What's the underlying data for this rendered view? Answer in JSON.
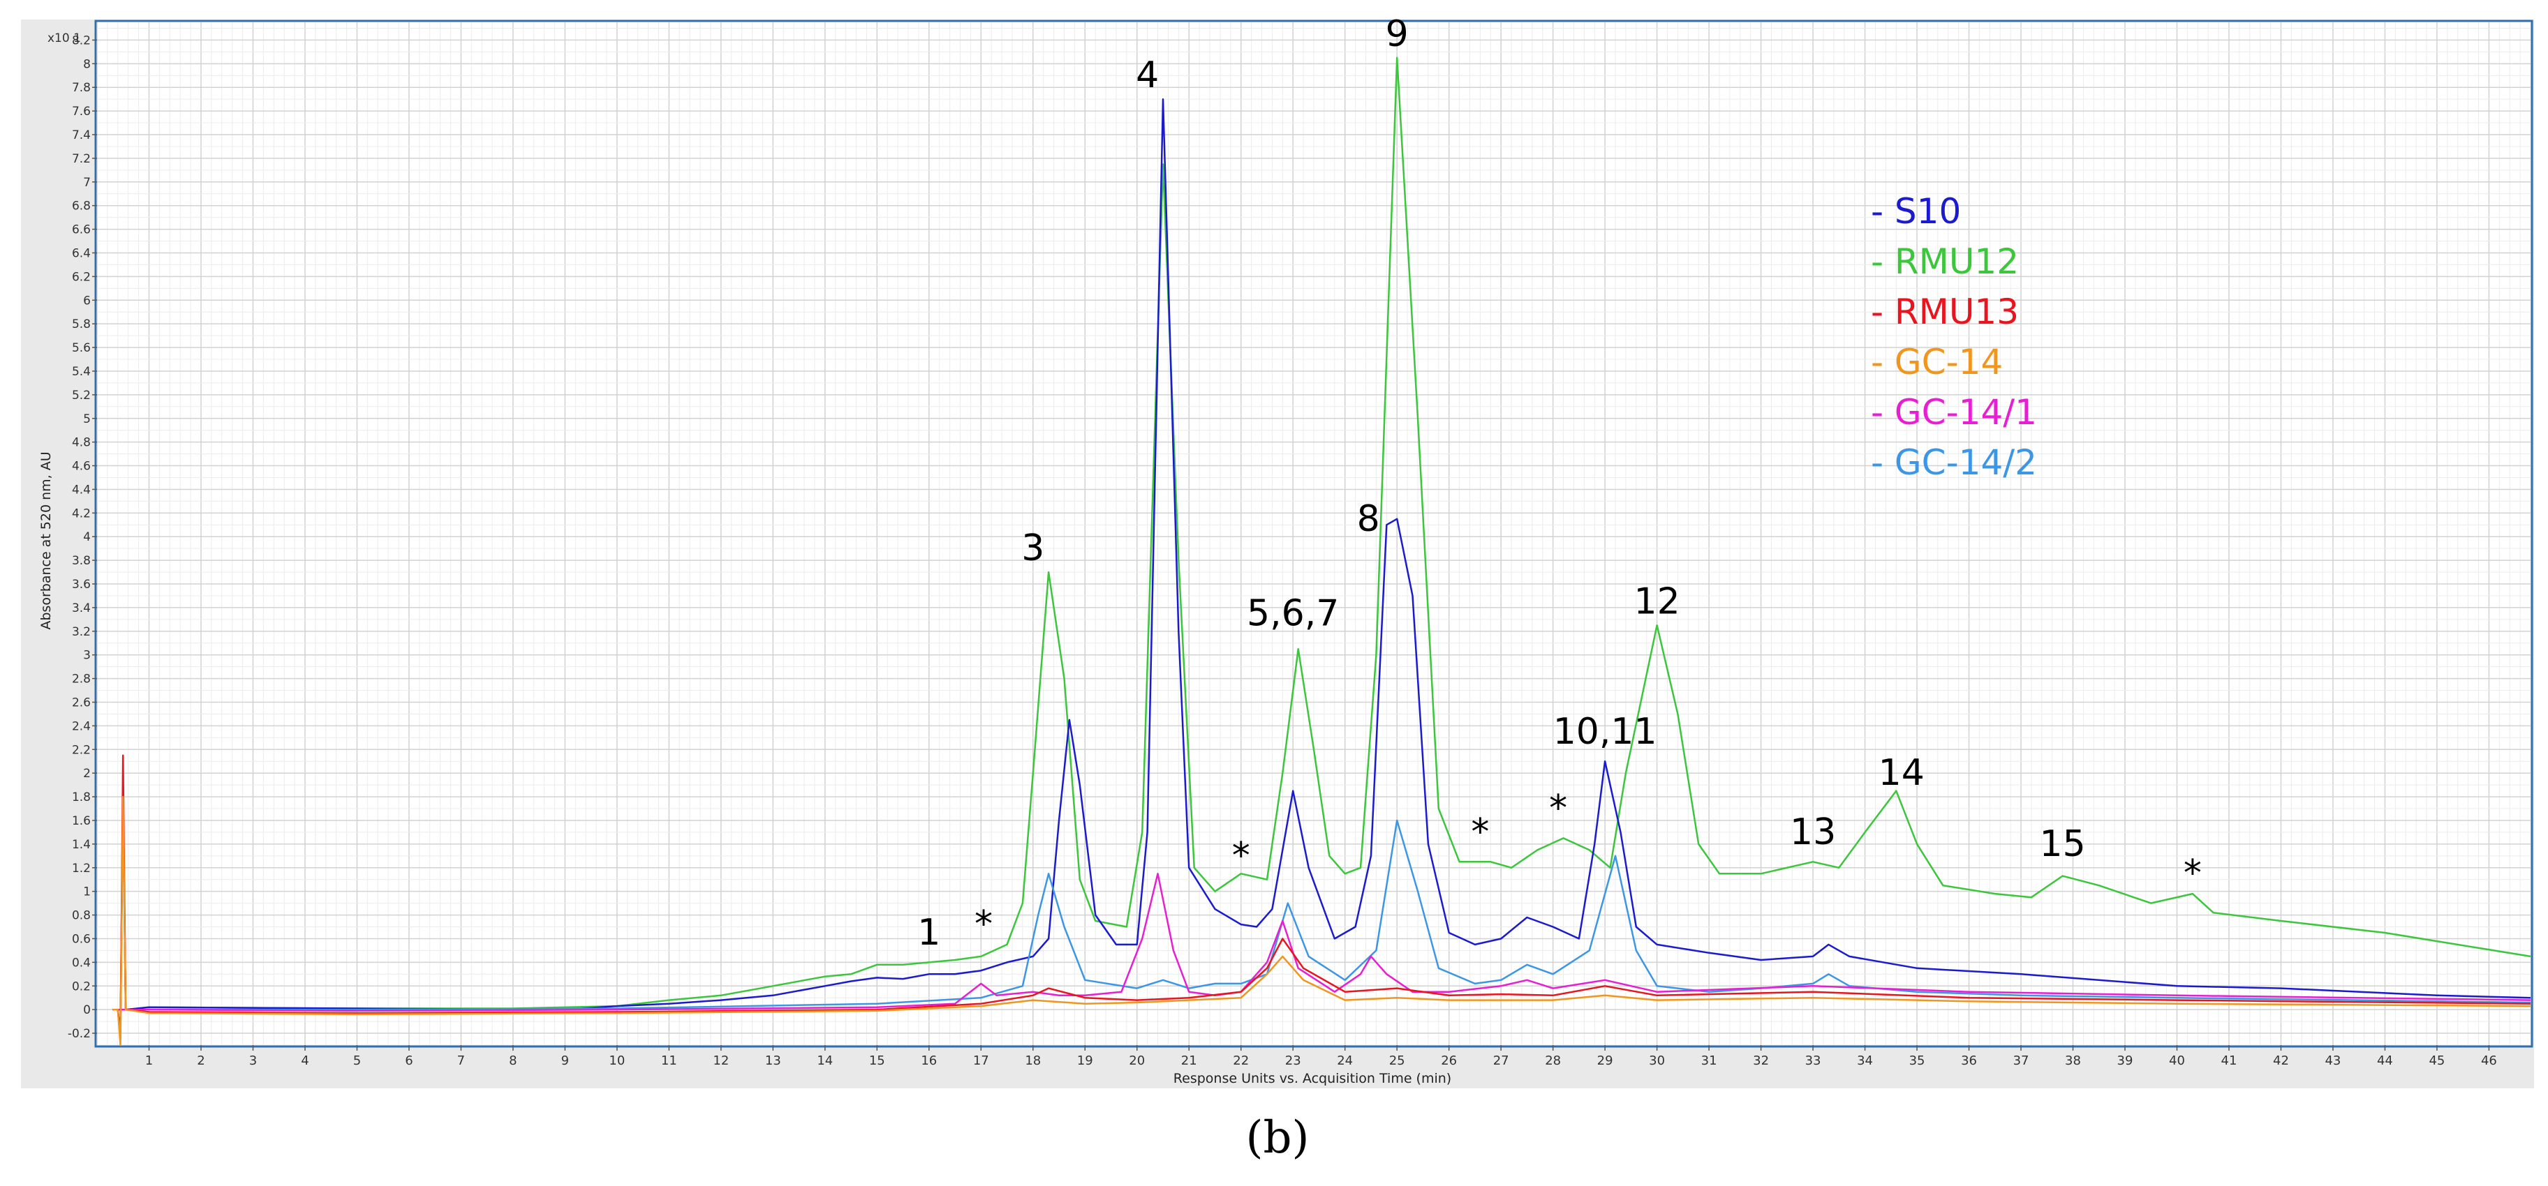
{
  "chart_data": {
    "type": "line",
    "ylabel": "Absorbance at 520 nm, AU",
    "xlabel": "Response Units vs. Acquisition Time (min)",
    "y_multiplier_label": "x10 1",
    "xlim": [
      0,
      46.8
    ],
    "ylim": [
      -0.3,
      8.35
    ],
    "x_ticks": [
      "1",
      "2",
      "3",
      "4",
      "5",
      "6",
      "7",
      "8",
      "9",
      "10",
      "11",
      "12",
      "13",
      "14",
      "15",
      "16",
      "17",
      "18",
      "19",
      "20",
      "21",
      "22",
      "23",
      "24",
      "25",
      "26",
      "27",
      "28",
      "29",
      "30",
      "31",
      "32",
      "33",
      "34",
      "35",
      "36",
      "37",
      "38",
      "39",
      "40",
      "41",
      "42",
      "43",
      "44",
      "45",
      "46"
    ],
    "y_ticks": [
      "-0.2",
      "0",
      "0.2",
      "0.4",
      "0.6",
      "0.8",
      "1",
      "1.2",
      "1.4",
      "1.6",
      "1.8",
      "2",
      "2.2",
      "2.4",
      "2.6",
      "2.8",
      "3",
      "3.2",
      "3.4",
      "3.6",
      "3.8",
      "4",
      "4.2",
      "4.4",
      "4.6",
      "4.8",
      "5",
      "5.2",
      "5.4",
      "5.6",
      "5.8",
      "6",
      "6.2",
      "6.4",
      "6.6",
      "6.8",
      "7",
      "7.2",
      "7.4",
      "7.6",
      "7.8",
      "8",
      "8.2"
    ],
    "grid": true,
    "legend_position": "top-right",
    "legend_prefix": "-",
    "series": [
      {
        "name": "S10",
        "color": "#1a1ad0",
        "points": [
          [
            0.3,
            0
          ],
          [
            0.4,
            0
          ],
          [
            0.45,
            -0.2
          ],
          [
            0.5,
            1.8
          ],
          [
            0.55,
            0
          ],
          [
            1,
            0.02
          ],
          [
            5,
            0.01
          ],
          [
            9,
            0
          ],
          [
            10,
            0.03
          ],
          [
            11,
            0.05
          ],
          [
            12,
            0.08
          ],
          [
            13,
            0.12
          ],
          [
            14,
            0.2
          ],
          [
            14.5,
            0.24
          ],
          [
            15,
            0.27
          ],
          [
            15.5,
            0.26
          ],
          [
            16,
            0.3
          ],
          [
            16.5,
            0.3
          ],
          [
            17,
            0.33
          ],
          [
            17.5,
            0.4
          ],
          [
            18,
            0.45
          ],
          [
            18.3,
            0.6
          ],
          [
            18.5,
            1.6
          ],
          [
            18.7,
            2.45
          ],
          [
            18.9,
            1.9
          ],
          [
            19.2,
            0.8
          ],
          [
            19.6,
            0.55
          ],
          [
            20,
            0.55
          ],
          [
            20.2,
            1.5
          ],
          [
            20.5,
            7.7
          ],
          [
            20.8,
            3.2
          ],
          [
            21,
            1.2
          ],
          [
            21.5,
            0.85
          ],
          [
            22,
            0.72
          ],
          [
            22.3,
            0.7
          ],
          [
            22.6,
            0.85
          ],
          [
            23,
            1.85
          ],
          [
            23.3,
            1.2
          ],
          [
            23.8,
            0.6
          ],
          [
            24.2,
            0.7
          ],
          [
            24.5,
            1.3
          ],
          [
            24.8,
            4.1
          ],
          [
            25,
            4.15
          ],
          [
            25.3,
            3.5
          ],
          [
            25.6,
            1.4
          ],
          [
            26,
            0.65
          ],
          [
            26.5,
            0.55
          ],
          [
            27,
            0.6
          ],
          [
            27.5,
            0.78
          ],
          [
            28,
            0.7
          ],
          [
            28.5,
            0.6
          ],
          [
            28.8,
            1.4
          ],
          [
            29,
            2.1
          ],
          [
            29.3,
            1.5
          ],
          [
            29.6,
            0.7
          ],
          [
            30,
            0.55
          ],
          [
            31,
            0.48
          ],
          [
            32,
            0.42
          ],
          [
            33,
            0.45
          ],
          [
            33.3,
            0.55
          ],
          [
            33.7,
            0.45
          ],
          [
            35,
            0.35
          ],
          [
            37,
            0.3
          ],
          [
            40,
            0.2
          ],
          [
            42,
            0.18
          ],
          [
            45,
            0.12
          ],
          [
            46.8,
            0.1
          ]
        ]
      },
      {
        "name": "RMU12",
        "color": "#3cc63c",
        "points": [
          [
            0.3,
            0
          ],
          [
            0.4,
            0
          ],
          [
            0.45,
            -0.2
          ],
          [
            0.5,
            1.9
          ],
          [
            0.55,
            0
          ],
          [
            1,
            0.02
          ],
          [
            5,
            0.01
          ],
          [
            8,
            0.01
          ],
          [
            10,
            0.03
          ],
          [
            11,
            0.08
          ],
          [
            12,
            0.12
          ],
          [
            13,
            0.2
          ],
          [
            14,
            0.28
          ],
          [
            14.5,
            0.3
          ],
          [
            15,
            0.38
          ],
          [
            15.5,
            0.38
          ],
          [
            16,
            0.4
          ],
          [
            16.5,
            0.42
          ],
          [
            17,
            0.45
          ],
          [
            17.5,
            0.55
          ],
          [
            17.8,
            0.9
          ],
          [
            18,
            2
          ],
          [
            18.3,
            3.7
          ],
          [
            18.6,
            2.8
          ],
          [
            18.9,
            1.1
          ],
          [
            19.2,
            0.75
          ],
          [
            19.8,
            0.7
          ],
          [
            20.1,
            1.5
          ],
          [
            20.5,
            7.15
          ],
          [
            20.8,
            3.8
          ],
          [
            21.1,
            1.2
          ],
          [
            21.5,
            1.0
          ],
          [
            22,
            1.15
          ],
          [
            22.5,
            1.1
          ],
          [
            22.8,
            2
          ],
          [
            23.1,
            3.05
          ],
          [
            23.4,
            2.2
          ],
          [
            23.7,
            1.3
          ],
          [
            24,
            1.15
          ],
          [
            24.3,
            1.2
          ],
          [
            24.6,
            3
          ],
          [
            25,
            8.05
          ],
          [
            25.4,
            5
          ],
          [
            25.8,
            1.7
          ],
          [
            26.2,
            1.25
          ],
          [
            26.8,
            1.25
          ],
          [
            27.2,
            1.2
          ],
          [
            27.7,
            1.35
          ],
          [
            28.2,
            1.45
          ],
          [
            28.7,
            1.35
          ],
          [
            29.1,
            1.2
          ],
          [
            29.4,
            2
          ],
          [
            30,
            3.25
          ],
          [
            30.4,
            2.5
          ],
          [
            30.8,
            1.4
          ],
          [
            31.2,
            1.15
          ],
          [
            32,
            1.15
          ],
          [
            33,
            1.25
          ],
          [
            33.5,
            1.2
          ],
          [
            34,
            1.5
          ],
          [
            34.6,
            1.85
          ],
          [
            35,
            1.4
          ],
          [
            35.5,
            1.05
          ],
          [
            36.5,
            0.98
          ],
          [
            37.2,
            0.95
          ],
          [
            37.8,
            1.13
          ],
          [
            38.5,
            1.05
          ],
          [
            39.5,
            0.9
          ],
          [
            40.3,
            0.98
          ],
          [
            40.7,
            0.82
          ],
          [
            42,
            0.75
          ],
          [
            44,
            0.65
          ],
          [
            46.8,
            0.45
          ]
        ]
      },
      {
        "name": "RMU13",
        "color": "#e8141e",
        "points": [
          [
            0.3,
            0
          ],
          [
            0.4,
            0
          ],
          [
            0.45,
            -0.25
          ],
          [
            0.5,
            2.15
          ],
          [
            0.55,
            0
          ],
          [
            1,
            -0.02
          ],
          [
            5,
            -0.03
          ],
          [
            10,
            -0.02
          ],
          [
            15,
            0
          ],
          [
            17,
            0.05
          ],
          [
            18,
            0.12
          ],
          [
            18.3,
            0.18
          ],
          [
            19,
            0.1
          ],
          [
            20,
            0.08
          ],
          [
            21,
            0.1
          ],
          [
            22,
            0.15
          ],
          [
            22.5,
            0.35
          ],
          [
            22.8,
            0.6
          ],
          [
            23.2,
            0.35
          ],
          [
            24,
            0.15
          ],
          [
            25,
            0.18
          ],
          [
            26,
            0.12
          ],
          [
            27,
            0.13
          ],
          [
            28,
            0.12
          ],
          [
            29,
            0.2
          ],
          [
            30,
            0.12
          ],
          [
            33,
            0.15
          ],
          [
            36,
            0.1
          ],
          [
            40,
            0.08
          ],
          [
            46.8,
            0.05
          ]
        ]
      },
      {
        "name": "GC-14",
        "color": "#f0961e",
        "points": [
          [
            0.3,
            0
          ],
          [
            0.4,
            0
          ],
          [
            0.45,
            -0.3
          ],
          [
            0.5,
            1.8
          ],
          [
            0.55,
            0
          ],
          [
            1,
            -0.03
          ],
          [
            5,
            -0.04
          ],
          [
            10,
            -0.03
          ],
          [
            15,
            -0.01
          ],
          [
            17,
            0.03
          ],
          [
            18,
            0.08
          ],
          [
            19,
            0.05
          ],
          [
            20,
            0.06
          ],
          [
            21,
            0.08
          ],
          [
            22,
            0.1
          ],
          [
            22.5,
            0.3
          ],
          [
            22.8,
            0.45
          ],
          [
            23.2,
            0.25
          ],
          [
            24,
            0.08
          ],
          [
            25,
            0.1
          ],
          [
            26,
            0.08
          ],
          [
            28,
            0.08
          ],
          [
            29,
            0.12
          ],
          [
            30,
            0.08
          ],
          [
            33,
            0.1
          ],
          [
            36,
            0.07
          ],
          [
            40,
            0.05
          ],
          [
            46.8,
            0.03
          ]
        ]
      },
      {
        "name": "GC-14/1",
        "color": "#e81ed2",
        "points": [
          [
            0.3,
            0
          ],
          [
            1,
            0
          ],
          [
            5,
            -0.01
          ],
          [
            10,
            0
          ],
          [
            15,
            0.02
          ],
          [
            16.5,
            0.05
          ],
          [
            17,
            0.22
          ],
          [
            17.3,
            0.12
          ],
          [
            18,
            0.15
          ],
          [
            18.5,
            0.12
          ],
          [
            19,
            0.12
          ],
          [
            19.7,
            0.15
          ],
          [
            20.1,
            0.6
          ],
          [
            20.4,
            1.15
          ],
          [
            20.7,
            0.5
          ],
          [
            21,
            0.15
          ],
          [
            21.5,
            0.12
          ],
          [
            22,
            0.15
          ],
          [
            22.5,
            0.4
          ],
          [
            22.8,
            0.75
          ],
          [
            23.1,
            0.35
          ],
          [
            23.8,
            0.15
          ],
          [
            24.3,
            0.3
          ],
          [
            24.5,
            0.45
          ],
          [
            24.8,
            0.3
          ],
          [
            25.3,
            0.15
          ],
          [
            26,
            0.15
          ],
          [
            27,
            0.2
          ],
          [
            27.5,
            0.25
          ],
          [
            28,
            0.18
          ],
          [
            29,
            0.25
          ],
          [
            30,
            0.15
          ],
          [
            33,
            0.2
          ],
          [
            36,
            0.15
          ],
          [
            40,
            0.12
          ],
          [
            46.8,
            0.08
          ]
        ]
      },
      {
        "name": "GC-14/2",
        "color": "#3c96e6",
        "points": [
          [
            0.3,
            0
          ],
          [
            1,
            0
          ],
          [
            5,
            0
          ],
          [
            10,
            0.01
          ],
          [
            15,
            0.05
          ],
          [
            17,
            0.1
          ],
          [
            17.8,
            0.2
          ],
          [
            18.1,
            0.8
          ],
          [
            18.3,
            1.15
          ],
          [
            18.6,
            0.7
          ],
          [
            19,
            0.25
          ],
          [
            20,
            0.18
          ],
          [
            20.5,
            0.25
          ],
          [
            21,
            0.18
          ],
          [
            21.5,
            0.22
          ],
          [
            22,
            0.22
          ],
          [
            22.5,
            0.3
          ],
          [
            22.9,
            0.9
          ],
          [
            23.3,
            0.45
          ],
          [
            24,
            0.25
          ],
          [
            24.6,
            0.5
          ],
          [
            25,
            1.6
          ],
          [
            25.4,
            1.0
          ],
          [
            25.8,
            0.35
          ],
          [
            26.5,
            0.22
          ],
          [
            27,
            0.25
          ],
          [
            27.5,
            0.38
          ],
          [
            28,
            0.3
          ],
          [
            28.7,
            0.5
          ],
          [
            29.2,
            1.3
          ],
          [
            29.6,
            0.5
          ],
          [
            30,
            0.2
          ],
          [
            31,
            0.15
          ],
          [
            32,
            0.18
          ],
          [
            33,
            0.22
          ],
          [
            33.3,
            0.3
          ],
          [
            33.7,
            0.2
          ],
          [
            35,
            0.15
          ],
          [
            37,
            0.12
          ],
          [
            40,
            0.1
          ],
          [
            46.8,
            0.06
          ]
        ]
      }
    ],
    "annotations": [
      {
        "text": "1",
        "x": 16.0,
        "y": 0.55
      },
      {
        "text": "*",
        "x": 17.05,
        "y": 0.62
      },
      {
        "text": "3",
        "x": 18.0,
        "y": 3.8
      },
      {
        "text": "4",
        "x": 20.2,
        "y": 7.8
      },
      {
        "text": "*",
        "x": 22.0,
        "y": 1.2
      },
      {
        "text": "5,6,7",
        "x": 23.0,
        "y": 3.25
      },
      {
        "text": "8",
        "x": 24.45,
        "y": 4.05
      },
      {
        "text": "9",
        "x": 25.0,
        "y": 8.15
      },
      {
        "text": "*",
        "x": 26.6,
        "y": 1.4
      },
      {
        "text": "*",
        "x": 28.1,
        "y": 1.6
      },
      {
        "text": "10,11",
        "x": 29.0,
        "y": 2.25
      },
      {
        "text": "12",
        "x": 30.0,
        "y": 3.35
      },
      {
        "text": "13",
        "x": 33.0,
        "y": 1.4
      },
      {
        "text": "14",
        "x": 34.7,
        "y": 1.9
      },
      {
        "text": "15",
        "x": 37.8,
        "y": 1.3
      },
      {
        "text": "*",
        "x": 40.3,
        "y": 1.05
      }
    ]
  },
  "caption": "(b)"
}
